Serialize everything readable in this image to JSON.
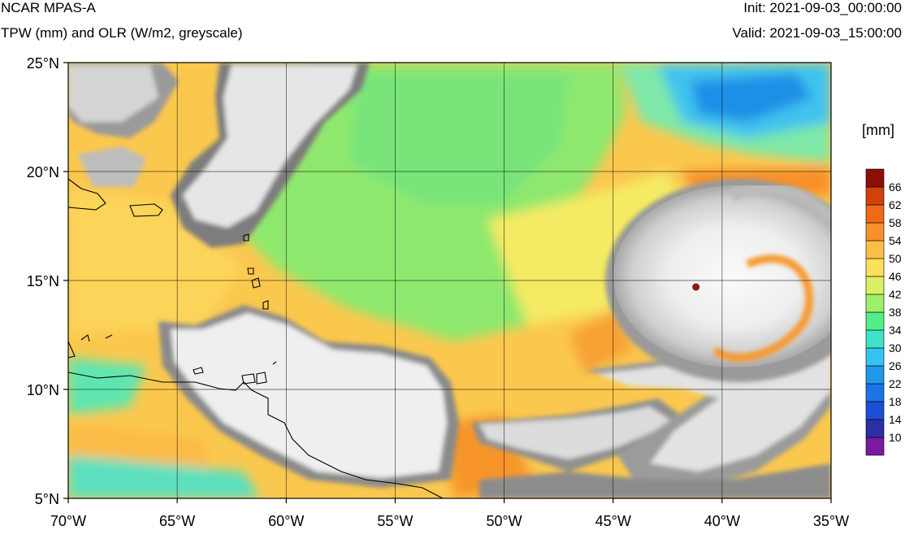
{
  "header": {
    "model": "NCAR MPAS-A",
    "fields": "TPW (mm) and OLR (W/m2, greyscale)",
    "init": "Init: 2021-09-03_00:00:00",
    "valid": "Valid: 2021-09-03_15:00:00"
  },
  "map": {
    "lon_range": [
      -70,
      -35
    ],
    "lat_range": [
      5,
      25
    ],
    "lon_ticks": [
      {
        "value": -70,
        "label": "70°W"
      },
      {
        "value": -65,
        "label": "65°W"
      },
      {
        "value": -60,
        "label": "60°W"
      },
      {
        "value": -55,
        "label": "55°W"
      },
      {
        "value": -50,
        "label": "50°W"
      },
      {
        "value": -45,
        "label": "45°W"
      },
      {
        "value": -40,
        "label": "40°W"
      },
      {
        "value": -35,
        "label": "35°W"
      }
    ],
    "lat_ticks": [
      {
        "value": 25,
        "label": "25°N"
      },
      {
        "value": 20,
        "label": "20°N"
      },
      {
        "value": 15,
        "label": "15°N"
      },
      {
        "value": 10,
        "label": "10°N"
      },
      {
        "value": 5,
        "label": "5°N"
      }
    ],
    "hurricane_eye": {
      "lon": -41.2,
      "lat": 14.7
    }
  },
  "colorbar": {
    "units": "[mm]",
    "levels": [
      10,
      14,
      18,
      22,
      26,
      30,
      34,
      38,
      42,
      46,
      50,
      54,
      58,
      62,
      66
    ],
    "colors": [
      "#7a1aa0",
      "#2b2fa6",
      "#1c4fd6",
      "#1a74e6",
      "#1f98ea",
      "#35c4f0",
      "#3fe3c8",
      "#52ee8a",
      "#9ef06a",
      "#dcef62",
      "#fce05a",
      "#fbbf48",
      "#f7912c",
      "#ee6a16",
      "#d2400c",
      "#8c0f05"
    ]
  },
  "chart_data": {
    "type": "heatmap",
    "title": "NCAR MPAS-A",
    "subtitle": "TPW (mm) and OLR (W/m2, greyscale)",
    "xlabel": "",
    "ylabel": "",
    "xlim": [
      -70,
      -35
    ],
    "ylim": [
      5,
      25
    ],
    "colorbar_units": "[mm]",
    "colorbar_levels": [
      10,
      14,
      18,
      22,
      26,
      30,
      34,
      38,
      42,
      46,
      50,
      54,
      58,
      62,
      66
    ],
    "grid": true
  }
}
